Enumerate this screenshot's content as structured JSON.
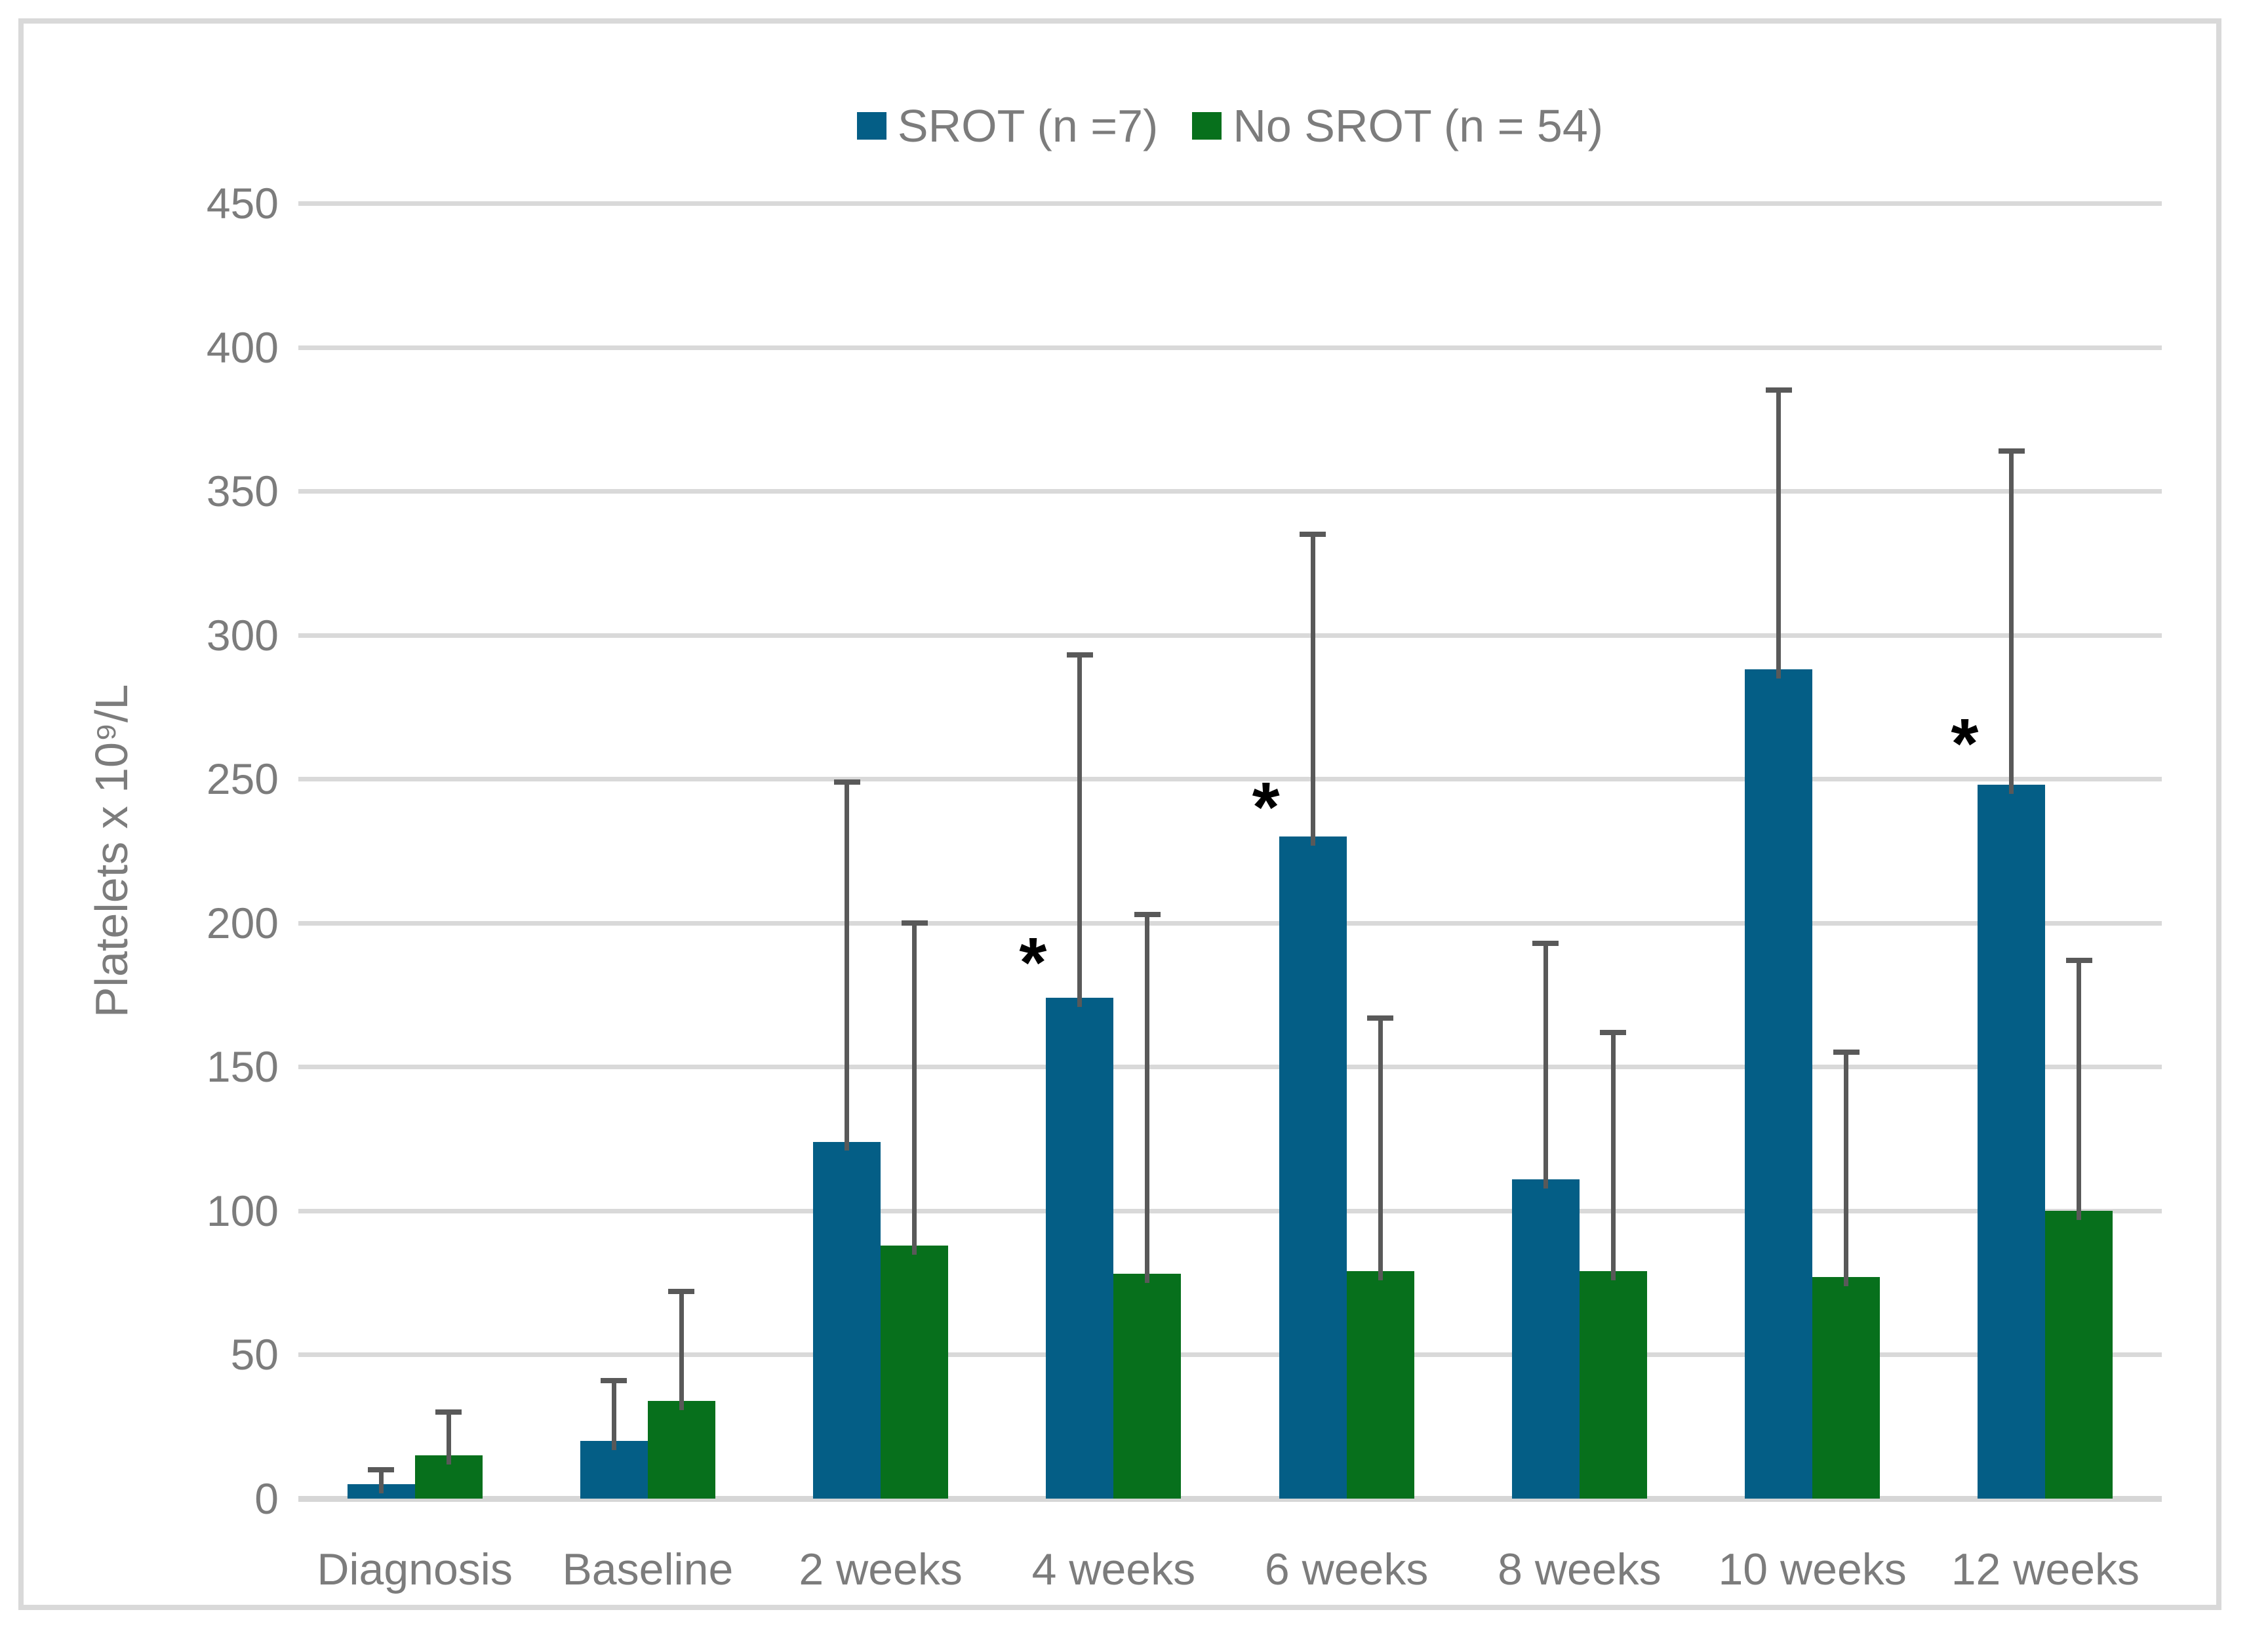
{
  "style": {
    "frame_color": "#D9D9D9",
    "grid_color": "#D9D9D9",
    "axis_line_color": "#D6D6D6",
    "error_bar_color": "#595959",
    "text_color": "#7C7C7C",
    "annotation_color": "#000000",
    "background": "#FFFFFF"
  },
  "legend": {
    "position": "top-center",
    "items": [
      {
        "label": "SROT (n =7)",
        "color": "#045E86"
      },
      {
        "label": "No SROT (n = 54)",
        "color": "#07701C"
      }
    ]
  },
  "chart_data": {
    "type": "bar",
    "title": "",
    "categories": [
      "Diagnosis",
      "Baseline",
      "2 weeks",
      "4 weeks",
      "6 weeks",
      "8 weeks",
      "10 weeks",
      "12 weeks"
    ],
    "series": [
      {
        "name": "SROT (n =7)",
        "color": "#045E86",
        "values": [
          5,
          20,
          124,
          174,
          230,
          111,
          288,
          248
        ],
        "error_upper_cap": [
          10,
          41,
          249,
          293,
          335,
          193,
          385,
          364
        ]
      },
      {
        "name": "No SROT (n = 54)",
        "color": "#07701C",
        "values": [
          15,
          34,
          88,
          78,
          79,
          79,
          77,
          100
        ],
        "error_upper_cap": [
          30,
          72,
          200,
          203,
          167,
          162,
          155,
          187
        ]
      }
    ],
    "ylabel": "Platelets x 10⁹/L",
    "xlabel": "",
    "ylim": [
      0,
      450
    ],
    "ytick_step": 50,
    "yticks": [
      0,
      50,
      100,
      150,
      200,
      250,
      300,
      350,
      400,
      450
    ],
    "grid": true,
    "legend_position": "top",
    "annotations": [
      {
        "symbol": "*",
        "category": "4 weeks",
        "value": 190
      },
      {
        "symbol": "*",
        "category": "6 weeks",
        "value": 244
      },
      {
        "symbol": "*",
        "category": "12 weeks",
        "value": 266
      }
    ]
  }
}
